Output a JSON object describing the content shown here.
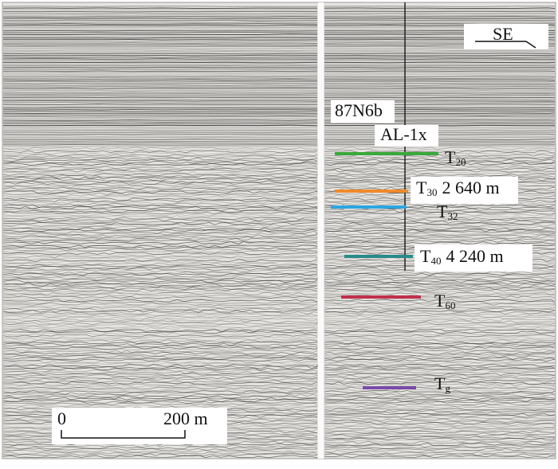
{
  "direction": "SE",
  "line_name": "87N6b",
  "well_name": "AL-1x",
  "horizons": [
    {
      "base": "T",
      "sub": "20",
      "color": "#3aa83a"
    },
    {
      "base": "T",
      "sub": "30",
      "depth": "2 640 m",
      "color": "#f08a2a"
    },
    {
      "base": "T",
      "sub": "32",
      "color": "#2aa6e0"
    },
    {
      "base": "T",
      "sub": "40",
      "depth": "4 240 m",
      "color": "#2a8a8a"
    },
    {
      "base": "T",
      "sub": "60",
      "color": "#c0304a"
    },
    {
      "base": "T",
      "sub": "g",
      "color": "#7a4aa8"
    }
  ],
  "scale_bar": {
    "start": "0",
    "end": "200 m"
  }
}
